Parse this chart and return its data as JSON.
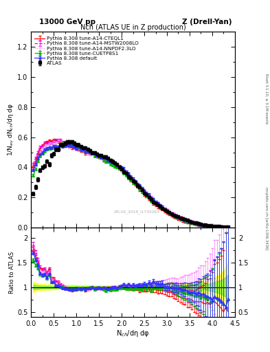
{
  "title_top_left": "13000 GeV pp",
  "title_top_right": "Z (Drell-Yan)",
  "plot_title": "Nch (ATLAS UE in Z production)",
  "xlabel": "N$_{ch}$/dη dφ",
  "ylabel_main": "1/N$_{ev}$ dN$_{ch}$/dη dφ",
  "ylabel_ratio": "Ratio to ATLAS",
  "right_label_top": "Rivet 3.1.10, ≥ 3.1M events",
  "right_label_bottom": "mcplots.cern.ch [arXiv:1306.3436]",
  "watermark": "ATLAS_2019_I1734263",
  "xlim": [
    0,
    4.5
  ],
  "ylim_main": [
    0,
    1.3
  ],
  "ylim_ratio": [
    0.4,
    2.2
  ],
  "legend_entries": [
    {
      "label": "ATLAS",
      "color": "black",
      "marker": "s",
      "linestyle": "none"
    },
    {
      "label": "Pythia 8.308 default",
      "color": "#3333ff",
      "marker": "^",
      "linestyle": "-"
    },
    {
      "label": "Pythia 8.308 tune-A14-CTEQL1",
      "color": "red",
      "marker": "none",
      "linestyle": "-"
    },
    {
      "label": "Pythia 8.308 tune-A14-MSTW2008LO",
      "color": "#ee00ee",
      "marker": "none",
      "linestyle": "--"
    },
    {
      "label": "Pythia 8.308 tune-A14-NNPDF2.3LO",
      "color": "#ff88ff",
      "marker": "none",
      "linestyle": ":"
    },
    {
      "label": "Pythia 8.308 tune-CUETP8S1",
      "color": "#00bb00",
      "marker": "^",
      "linestyle": "-."
    }
  ],
  "band_yellow": {
    "color": "#ffff00",
    "alpha": 0.6
  },
  "band_green": {
    "color": "#00dd00",
    "alpha": 0.35
  },
  "xdata": [
    0.05,
    0.1,
    0.15,
    0.2,
    0.25,
    0.3,
    0.35,
    0.4,
    0.45,
    0.5,
    0.55,
    0.6,
    0.65,
    0.7,
    0.75,
    0.8,
    0.85,
    0.9,
    0.95,
    1.0,
    1.05,
    1.1,
    1.15,
    1.2,
    1.25,
    1.3,
    1.35,
    1.4,
    1.45,
    1.5,
    1.55,
    1.6,
    1.65,
    1.7,
    1.75,
    1.8,
    1.85,
    1.9,
    1.95,
    2.0,
    2.05,
    2.1,
    2.15,
    2.2,
    2.25,
    2.3,
    2.35,
    2.4,
    2.45,
    2.5,
    2.55,
    2.6,
    2.65,
    2.7,
    2.75,
    2.8,
    2.85,
    2.9,
    2.95,
    3.0,
    3.05,
    3.1,
    3.15,
    3.2,
    3.25,
    3.3,
    3.35,
    3.4,
    3.45,
    3.5,
    3.55,
    3.6,
    3.65,
    3.7,
    3.75,
    3.8,
    3.85,
    3.9,
    3.95,
    4.0,
    4.05,
    4.1,
    4.15,
    4.2,
    4.25,
    4.3,
    4.35
  ],
  "atlas_y": [
    0.225,
    0.27,
    0.32,
    0.38,
    0.4,
    0.41,
    0.44,
    0.42,
    0.48,
    0.49,
    0.52,
    0.52,
    0.55,
    0.55,
    0.56,
    0.57,
    0.57,
    0.57,
    0.56,
    0.55,
    0.55,
    0.54,
    0.53,
    0.53,
    0.52,
    0.51,
    0.5,
    0.5,
    0.49,
    0.48,
    0.48,
    0.47,
    0.47,
    0.46,
    0.45,
    0.44,
    0.43,
    0.42,
    0.4,
    0.39,
    0.37,
    0.36,
    0.34,
    0.33,
    0.31,
    0.3,
    0.28,
    0.27,
    0.25,
    0.23,
    0.22,
    0.2,
    0.19,
    0.17,
    0.16,
    0.15,
    0.14,
    0.13,
    0.12,
    0.11,
    0.1,
    0.09,
    0.085,
    0.078,
    0.072,
    0.066,
    0.06,
    0.054,
    0.049,
    0.044,
    0.039,
    0.035,
    0.031,
    0.027,
    0.024,
    0.021,
    0.018,
    0.016,
    0.014,
    0.012,
    0.01,
    0.009,
    0.008,
    0.007,
    0.006,
    0.005,
    0.004
  ],
  "atlas_yerr": [
    0.012,
    0.012,
    0.012,
    0.012,
    0.012,
    0.012,
    0.012,
    0.012,
    0.012,
    0.012,
    0.012,
    0.012,
    0.012,
    0.012,
    0.012,
    0.012,
    0.012,
    0.012,
    0.012,
    0.012,
    0.01,
    0.01,
    0.01,
    0.01,
    0.01,
    0.009,
    0.009,
    0.009,
    0.009,
    0.009,
    0.008,
    0.008,
    0.008,
    0.008,
    0.008,
    0.008,
    0.007,
    0.007,
    0.007,
    0.007,
    0.007,
    0.006,
    0.006,
    0.006,
    0.006,
    0.006,
    0.006,
    0.005,
    0.005,
    0.005,
    0.005,
    0.005,
    0.004,
    0.004,
    0.004,
    0.004,
    0.004,
    0.003,
    0.003,
    0.003,
    0.003,
    0.003,
    0.003,
    0.003,
    0.003,
    0.002,
    0.002,
    0.002,
    0.002,
    0.002,
    0.002,
    0.002,
    0.002,
    0.002,
    0.002,
    0.001,
    0.001,
    0.001,
    0.001,
    0.001,
    0.001,
    0.001,
    0.001,
    0.001,
    0.001,
    0.001,
    0.001
  ],
  "default_y": [
    0.38,
    0.42,
    0.46,
    0.48,
    0.5,
    0.52,
    0.52,
    0.53,
    0.53,
    0.54,
    0.54,
    0.54,
    0.55,
    0.55,
    0.55,
    0.55,
    0.55,
    0.54,
    0.54,
    0.53,
    0.53,
    0.52,
    0.52,
    0.51,
    0.51,
    0.5,
    0.5,
    0.49,
    0.48,
    0.48,
    0.47,
    0.46,
    0.46,
    0.45,
    0.44,
    0.44,
    0.43,
    0.42,
    0.41,
    0.4,
    0.39,
    0.37,
    0.36,
    0.34,
    0.33,
    0.31,
    0.29,
    0.28,
    0.26,
    0.25,
    0.23,
    0.22,
    0.2,
    0.19,
    0.17,
    0.16,
    0.15,
    0.14,
    0.12,
    0.11,
    0.1,
    0.09,
    0.085,
    0.078,
    0.07,
    0.063,
    0.057,
    0.051,
    0.045,
    0.04,
    0.035,
    0.031,
    0.027,
    0.024,
    0.021,
    0.018,
    0.015,
    0.013,
    0.011,
    0.009,
    0.008,
    0.007,
    0.006,
    0.005,
    0.004,
    0.003,
    0.003
  ],
  "cteq_y": [
    0.4,
    0.44,
    0.48,
    0.52,
    0.54,
    0.56,
    0.57,
    0.58,
    0.58,
    0.58,
    0.58,
    0.57,
    0.57,
    0.56,
    0.55,
    0.55,
    0.54,
    0.53,
    0.53,
    0.52,
    0.52,
    0.51,
    0.51,
    0.5,
    0.5,
    0.49,
    0.49,
    0.48,
    0.48,
    0.47,
    0.47,
    0.46,
    0.46,
    0.45,
    0.44,
    0.43,
    0.42,
    0.41,
    0.4,
    0.39,
    0.37,
    0.35,
    0.34,
    0.32,
    0.3,
    0.29,
    0.27,
    0.25,
    0.24,
    0.22,
    0.21,
    0.19,
    0.18,
    0.16,
    0.15,
    0.14,
    0.13,
    0.12,
    0.11,
    0.1,
    0.09,
    0.08,
    0.073,
    0.066,
    0.059,
    0.053,
    0.047,
    0.042,
    0.037,
    0.033,
    0.029,
    0.025,
    0.022,
    0.019,
    0.017,
    0.014,
    0.012,
    0.011,
    0.009,
    0.008,
    0.007,
    0.006,
    0.005,
    0.004,
    0.003,
    0.003,
    0.002
  ],
  "mstw_y": [
    0.42,
    0.46,
    0.5,
    0.53,
    0.54,
    0.55,
    0.56,
    0.57,
    0.57,
    0.57,
    0.58,
    0.58,
    0.58,
    0.57,
    0.57,
    0.56,
    0.55,
    0.55,
    0.54,
    0.53,
    0.53,
    0.52,
    0.52,
    0.51,
    0.5,
    0.5,
    0.49,
    0.48,
    0.48,
    0.47,
    0.47,
    0.46,
    0.45,
    0.44,
    0.43,
    0.43,
    0.42,
    0.41,
    0.4,
    0.39,
    0.37,
    0.36,
    0.34,
    0.33,
    0.31,
    0.3,
    0.28,
    0.27,
    0.25,
    0.24,
    0.22,
    0.21,
    0.2,
    0.18,
    0.17,
    0.16,
    0.15,
    0.14,
    0.12,
    0.11,
    0.1,
    0.09,
    0.082,
    0.074,
    0.067,
    0.06,
    0.054,
    0.048,
    0.042,
    0.038,
    0.033,
    0.029,
    0.025,
    0.022,
    0.019,
    0.017,
    0.014,
    0.012,
    0.011,
    0.009,
    0.008,
    0.007,
    0.006,
    0.005,
    0.004,
    0.003,
    0.003
  ],
  "nnpdf_y": [
    0.39,
    0.44,
    0.48,
    0.51,
    0.53,
    0.54,
    0.55,
    0.56,
    0.56,
    0.57,
    0.57,
    0.57,
    0.57,
    0.56,
    0.56,
    0.55,
    0.54,
    0.54,
    0.53,
    0.53,
    0.52,
    0.52,
    0.51,
    0.5,
    0.5,
    0.49,
    0.49,
    0.48,
    0.47,
    0.47,
    0.46,
    0.45,
    0.45,
    0.44,
    0.43,
    0.42,
    0.41,
    0.4,
    0.39,
    0.38,
    0.37,
    0.35,
    0.34,
    0.32,
    0.31,
    0.29,
    0.28,
    0.26,
    0.25,
    0.23,
    0.22,
    0.21,
    0.19,
    0.18,
    0.17,
    0.16,
    0.15,
    0.14,
    0.13,
    0.12,
    0.11,
    0.1,
    0.092,
    0.085,
    0.078,
    0.071,
    0.065,
    0.059,
    0.053,
    0.048,
    0.043,
    0.038,
    0.034,
    0.03,
    0.027,
    0.023,
    0.02,
    0.018,
    0.016,
    0.014,
    0.012,
    0.01,
    0.009,
    0.008,
    0.007,
    0.006,
    0.005
  ],
  "cuetp_y": [
    0.35,
    0.39,
    0.44,
    0.47,
    0.49,
    0.51,
    0.52,
    0.53,
    0.53,
    0.54,
    0.54,
    0.54,
    0.55,
    0.55,
    0.55,
    0.55,
    0.55,
    0.55,
    0.54,
    0.54,
    0.53,
    0.52,
    0.52,
    0.51,
    0.5,
    0.5,
    0.49,
    0.48,
    0.48,
    0.47,
    0.46,
    0.45,
    0.44,
    0.44,
    0.43,
    0.42,
    0.41,
    0.4,
    0.39,
    0.38,
    0.36,
    0.35,
    0.33,
    0.32,
    0.3,
    0.29,
    0.27,
    0.26,
    0.24,
    0.23,
    0.21,
    0.2,
    0.18,
    0.17,
    0.16,
    0.15,
    0.14,
    0.13,
    0.12,
    0.11,
    0.1,
    0.09,
    0.082,
    0.074,
    0.067,
    0.06,
    0.054,
    0.048,
    0.043,
    0.038,
    0.033,
    0.029,
    0.025,
    0.022,
    0.019,
    0.017,
    0.014,
    0.012,
    0.01,
    0.009,
    0.008,
    0.007,
    0.006,
    0.005,
    0.004,
    0.003,
    0.003
  ],
  "mc_yerr_scale": 0.015,
  "noise_seed": 42
}
